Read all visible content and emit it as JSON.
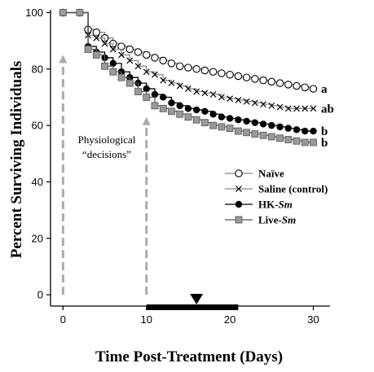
{
  "chart_data": {
    "type": "line",
    "xlabel": "Time Post-Treatment (Days)",
    "ylabel": "Percent Surviving Individuals",
    "xlim": [
      -1.5,
      32
    ],
    "ylim": [
      -4,
      101
    ],
    "xticks": [
      0,
      10,
      20,
      30
    ],
    "yticks": [
      0,
      20,
      40,
      60,
      80,
      100
    ],
    "x": [
      0,
      1,
      2,
      3,
      4,
      5,
      6,
      7,
      8,
      9,
      10,
      11,
      12,
      13,
      14,
      15,
      16,
      17,
      18,
      19,
      20,
      21,
      22,
      23,
      24,
      25,
      26,
      27,
      28,
      29,
      30
    ],
    "series": [
      {
        "name": "Naïve",
        "marker": "open-circle",
        "line_color": "#888888",
        "values": [
          100,
          100,
          100,
          94,
          93,
          91,
          89,
          88,
          87,
          86,
          85,
          84,
          83,
          82,
          81,
          80.5,
          80,
          79.5,
          79,
          78.5,
          78,
          77.5,
          77,
          76.5,
          76,
          75.5,
          75,
          74.5,
          74,
          73.5,
          73
        ]
      },
      {
        "name": "Saline (control)",
        "marker": "x",
        "line_color": "#888888",
        "values": [
          100,
          100,
          100,
          92,
          91,
          89,
          87,
          85,
          83,
          81,
          79,
          78,
          76,
          75,
          74,
          73,
          72,
          71.5,
          71,
          70,
          69.5,
          69,
          68.5,
          68,
          67.5,
          67,
          66.5,
          66,
          66,
          66,
          66
        ]
      },
      {
        "name": "HK-Sm",
        "marker": "filled-circle",
        "line_color": "#000000",
        "values": [
          100,
          100,
          100,
          88,
          86,
          84,
          82,
          79,
          77,
          75,
          73,
          71,
          70,
          68,
          67,
          66,
          65.5,
          65,
          64,
          63,
          62.5,
          62,
          61.5,
          61,
          60.5,
          60,
          59.5,
          59,
          58.5,
          58,
          58
        ]
      },
      {
        "name": "Live-Sm",
        "marker": "gray-square",
        "line_color": "#555555",
        "values": [
          100,
          100,
          100,
          87,
          85,
          81,
          79,
          77,
          75,
          72,
          70,
          67,
          66,
          65,
          64,
          63,
          62,
          61,
          60,
          59.5,
          59,
          58,
          57.5,
          57,
          56.5,
          56,
          55.5,
          55,
          54.5,
          54,
          54
        ]
      }
    ],
    "significance_letters": [
      "a",
      "ab",
      "b",
      "b"
    ],
    "annotation": {
      "line1": "Physiological",
      "line2": "“decisions”",
      "arrow_days": [
        0,
        10
      ]
    },
    "treatment_bar": {
      "start": 10,
      "end": 21,
      "marker_day": 16
    },
    "legend": {
      "placement": "right",
      "entries": [
        {
          "prefix": "Naïve",
          "italic": ""
        },
        {
          "prefix": "Saline (control)",
          "italic": ""
        },
        {
          "prefix": "HK-",
          "italic": "Sm"
        },
        {
          "prefix": "Live-",
          "italic": "Sm"
        }
      ]
    },
    "colors": {
      "dashed_arrow": "#aaaaaa",
      "square_fill": "#999999"
    }
  }
}
